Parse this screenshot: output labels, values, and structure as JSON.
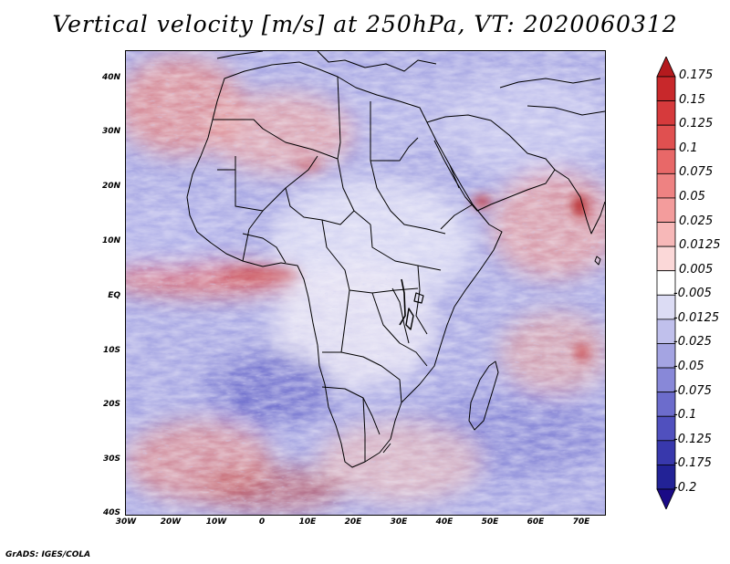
{
  "title": "Vertical velocity [m/s] at 250hPa, VT: 2020060312",
  "credit": "GrADS: IGES/COLA",
  "latitude_labels": [
    "40N",
    "30N",
    "20N",
    "10N",
    "EQ",
    "10S",
    "20S",
    "30S",
    "40S"
  ],
  "longitude_labels": [
    "30W",
    "20W",
    "10W",
    "0",
    "10E",
    "20E",
    "30E",
    "40E",
    "50E",
    "60E",
    "70E"
  ],
  "colorbar": {
    "labels": [
      "0.175",
      "0.15",
      "0.125",
      "0.1",
      "0.075",
      "0.05",
      "0.025",
      "0.0125",
      "0.005",
      "-0.005",
      "-0.0125",
      "-0.025",
      "-0.05",
      "-0.075",
      "-0.1",
      "-0.125",
      "-0.175",
      "-0.2"
    ],
    "colors": [
      "#b41a1e",
      "#c8282b",
      "#d63a3c",
      "#e05050",
      "#e86868",
      "#ee8282",
      "#f39c9c",
      "#f7b8b8",
      "#fbd8d8",
      "#ffffff",
      "#dcdcf4",
      "#c0c0ec",
      "#a4a4e2",
      "#8888d8",
      "#6c6ccc",
      "#5050be",
      "#3838ac",
      "#222296",
      "#1a0a86"
    ]
  },
  "field_colors": {
    "positive_strong": "#c83030",
    "positive": "#ee8a8a",
    "neutral": "#eeeaf6",
    "negative": "#9a9ae0",
    "negative_strong": "#4848b8"
  }
}
